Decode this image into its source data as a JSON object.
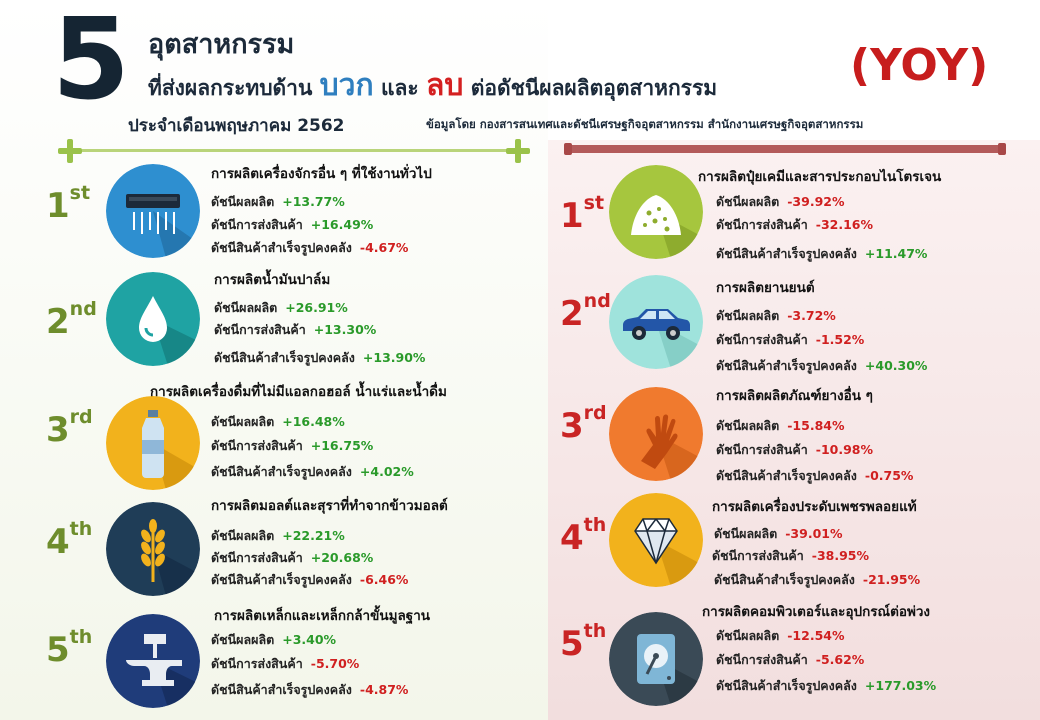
{
  "header": {
    "number": "5",
    "title_line1": "อุตสาหกรรม",
    "title_line2_a": "ที่ส่งผลกระทบด้าน",
    "positive_word": "บวก",
    "and_word": "และ",
    "negative_word": "ลบ",
    "title_line2_b": "ต่อดัชนีผลผลิตอุตสาหกรรม",
    "period": "ประจำเดือนพฤษภาคม 2562",
    "yoy": "(YOY)",
    "source": "ข้อมูลโดย กองสารสนเทศและดัชนีเศรษฐกิจอุตสาหกรรม สำนักงานเศรษฐกิจอุตสาหกรรม"
  },
  "labels": {
    "production": "ดัชนีผลผลิต",
    "shipment": "ดัชนีการส่งสินค้า",
    "inventory": "ดัชนีสินค้าสำเร็จรูปคงคลัง"
  },
  "positive": [
    {
      "rank": "1",
      "suffix": "st",
      "icon": "air-conditioner-icon",
      "name": "การผลิตเครื่องจักรอื่น ๆ ที่ใช้งานทั่วไป",
      "production": "+13.77%",
      "shipment": "+16.49%",
      "inventory": "-4.67%"
    },
    {
      "rank": "2",
      "suffix": "nd",
      "icon": "oil-drop-icon",
      "name": "การผลิตน้ำมันปาล์ม",
      "production": "+26.91%",
      "shipment": "+13.30%",
      "inventory": "+13.90%"
    },
    {
      "rank": "3",
      "suffix": "rd",
      "icon": "water-bottle-icon",
      "name": "การผลิตเครื่องดื่มที่ไม่มีแอลกอฮอล์ น้ำแร่และน้ำดื่ม",
      "production": "+16.48%",
      "shipment": "+16.75%",
      "inventory": "+4.02%"
    },
    {
      "rank": "4",
      "suffix": "th",
      "icon": "wheat-icon",
      "name": "การผลิตมอลต์และสุราที่ทำจากข้าวมอลต์",
      "production": "+22.21%",
      "shipment": "+20.68%",
      "inventory": "-6.46%"
    },
    {
      "rank": "5",
      "suffix": "th",
      "icon": "anvil-icon",
      "name": "การผลิตเหล็กและเหล็กกล้าขั้นมูลฐาน",
      "production": "+3.40%",
      "shipment": "-5.70%",
      "inventory": "-4.87%"
    }
  ],
  "negative": [
    {
      "rank": "1",
      "suffix": "st",
      "icon": "fertilizer-icon",
      "name": "การผลิตปุ๋ยเคมีและสารประกอบไนโตรเจน",
      "production": "-39.92%",
      "shipment": "-32.16%",
      "inventory": "+11.47%"
    },
    {
      "rank": "2",
      "suffix": "nd",
      "icon": "car-icon",
      "name": "การผลิตยานยนต์",
      "production": "-3.72%",
      "shipment": "-1.52%",
      "inventory": "+40.30%"
    },
    {
      "rank": "3",
      "suffix": "rd",
      "icon": "rubber-glove-icon",
      "name": "การผลิตผลิตภัณฑ์ยางอื่น ๆ",
      "production": "-15.84%",
      "shipment": "-10.98%",
      "inventory": "-0.75%"
    },
    {
      "rank": "4",
      "suffix": "th",
      "icon": "diamond-icon",
      "name": "การผลิตเครื่องประดับเพชรพลอยแท้",
      "production": "-39.01%",
      "shipment": "-38.95%",
      "inventory": "-21.95%"
    },
    {
      "rank": "5",
      "suffix": "th",
      "icon": "hard-disk-icon",
      "name": "การผลิตคอมพิวเตอร์และอุปกรณ์ต่อพ่วง",
      "production": "-12.54%",
      "shipment": "-5.62%",
      "inventory": "+177.03%"
    }
  ],
  "colors": {
    "positive": "#2a9a2a",
    "negative": "#d02020",
    "rank_left": "#6e8d2c",
    "rank_right": "#c92424"
  }
}
